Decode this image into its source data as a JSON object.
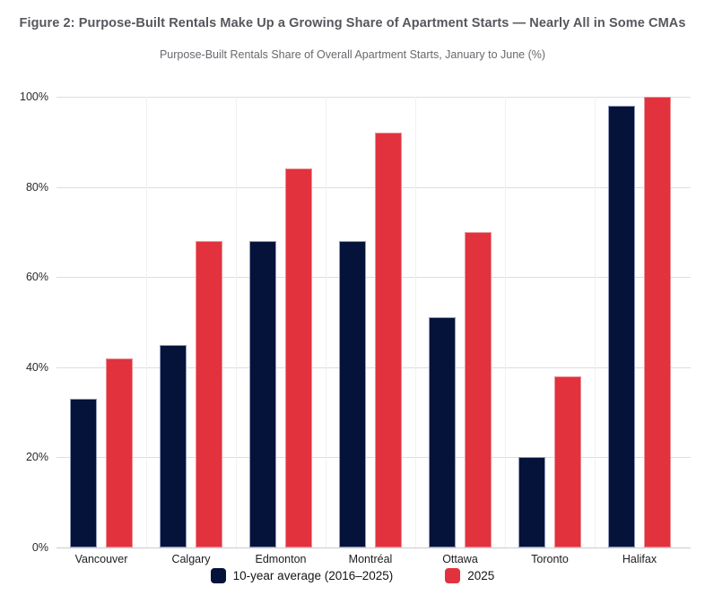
{
  "chart_data": {
    "type": "bar",
    "title": "Figure 2: Purpose-Built Rentals Make Up a Growing Share of Apartment Starts — Nearly All in Some CMAs",
    "subtitle": "Purpose-Built Rentals Share of Overall Apartment Starts, January to June (%)",
    "categories": [
      "Vancouver",
      "Calgary",
      "Edmonton",
      "Montréal",
      "Ottawa",
      "Toronto",
      "Halifax"
    ],
    "series": [
      {
        "name": "10-year average (2016–2025)",
        "color": "#05123A",
        "values": [
          33,
          45,
          68,
          68,
          51,
          20,
          98
        ]
      },
      {
        "name": "2025",
        "color": "#E1323D",
        "values": [
          42,
          68,
          84,
          92,
          70,
          38,
          100
        ]
      }
    ],
    "xlabel": "",
    "ylabel": "",
    "ylim": [
      0,
      100
    ],
    "yticks": [
      "0%",
      "20%",
      "40%",
      "60%",
      "80%",
      "100%"
    ],
    "grid": true,
    "legend_position": "bottom",
    "colors": {
      "background": "#ffffff",
      "gridline": "#dcdce3",
      "title_text": "#56575c"
    }
  }
}
